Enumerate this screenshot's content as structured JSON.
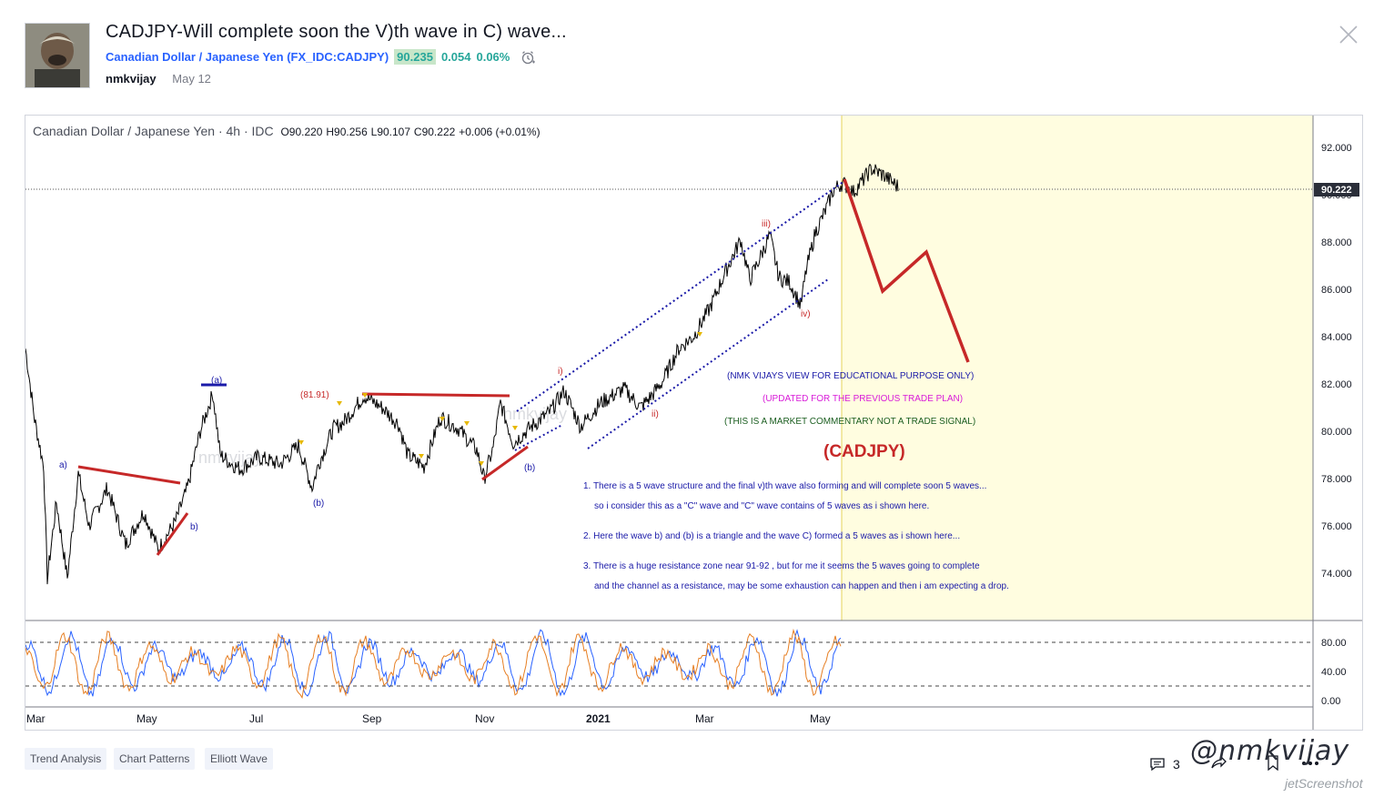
{
  "idea": {
    "title": "CADJPY-Will complete soon the V)th wave in C) wave...",
    "symbol_name": "Canadian Dollar / Japanese Yen",
    "symbol_code": "FX_IDC:CADJPY",
    "price": "90.235",
    "change": "0.054",
    "change_pct": "0.06%",
    "author": "nmkvijay",
    "date": "May 12"
  },
  "legend": {
    "instrument": "Canadian Dollar / Japanese Yen",
    "interval": "4h",
    "source": "IDC",
    "open": "O90.220",
    "high": "H90.256",
    "low": "L90.107",
    "close": "C90.222",
    "change": "+0.006 (+0.01%)"
  },
  "chart_data": {
    "type": "line",
    "price_axis": [
      "92.000",
      "90.000",
      "88.000",
      "86.000",
      "84.000",
      "82.000",
      "80.000",
      "78.000",
      "76.000",
      "74.000"
    ],
    "last_price_label": "90.222",
    "time_axis": [
      "Mar",
      "May",
      "Jul",
      "Sep",
      "Nov",
      "2021",
      "Mar",
      "May"
    ],
    "oscillator_axis": [
      "80.00",
      "40.00",
      "0.00"
    ],
    "wave_labels": [
      "a)",
      "b)",
      "(a)",
      "(b)",
      "(81.91)",
      "(b)",
      "i)",
      "ii)",
      "iii)",
      "iv)"
    ],
    "annotations": {
      "view": "(NMK VIJAYS VIEW FOR EDUCATIONAL PURPOSE ONLY)",
      "updated": "(UPDATED FOR THE PREVIOUS TRADE PLAN)",
      "disclaimer": "(THIS IS A MARKET COMMENTARY NOT A TRADE SIGNAL)",
      "ticker": "(CADJPY)",
      "note1a": "1. There is a 5 wave structure and the final v)th wave also forming and will complete soon 5 waves...",
      "note1b": "so i consider this as a \"C\" wave and \"C\" wave contains of 5 waves as i shown here.",
      "note2": "2. Here the wave b) and (b) is a triangle and the wave C) formed a 5 waves as i shown here...",
      "note3a": "3. There is a huge resistance zone near 91-92 , but for me it seems the 5 waves going to complete",
      "note3b": "and the channel as a resistance, may be some exhaustion can happen and then i am expecting a drop."
    },
    "chart_watermark": "nmkvijay",
    "colors": {
      "price": "#000000",
      "projection": "#c62828",
      "channel": "#1a1aa8",
      "oscillator_k": "#2962ff",
      "oscillator_d": "#e67e22",
      "highlight": "#fffde0"
    }
  },
  "tags": [
    "Trend Analysis",
    "Chart Patterns",
    "Elliott Wave"
  ],
  "footer": {
    "comments_count": "3",
    "watermark": "@nmkvijay",
    "screenshot_mark": "jetScreenshot"
  },
  "icons": [
    "alarm-clock-icon",
    "close-icon",
    "comment-icon",
    "share-icon",
    "bookmark-icon",
    "more-icon"
  ]
}
